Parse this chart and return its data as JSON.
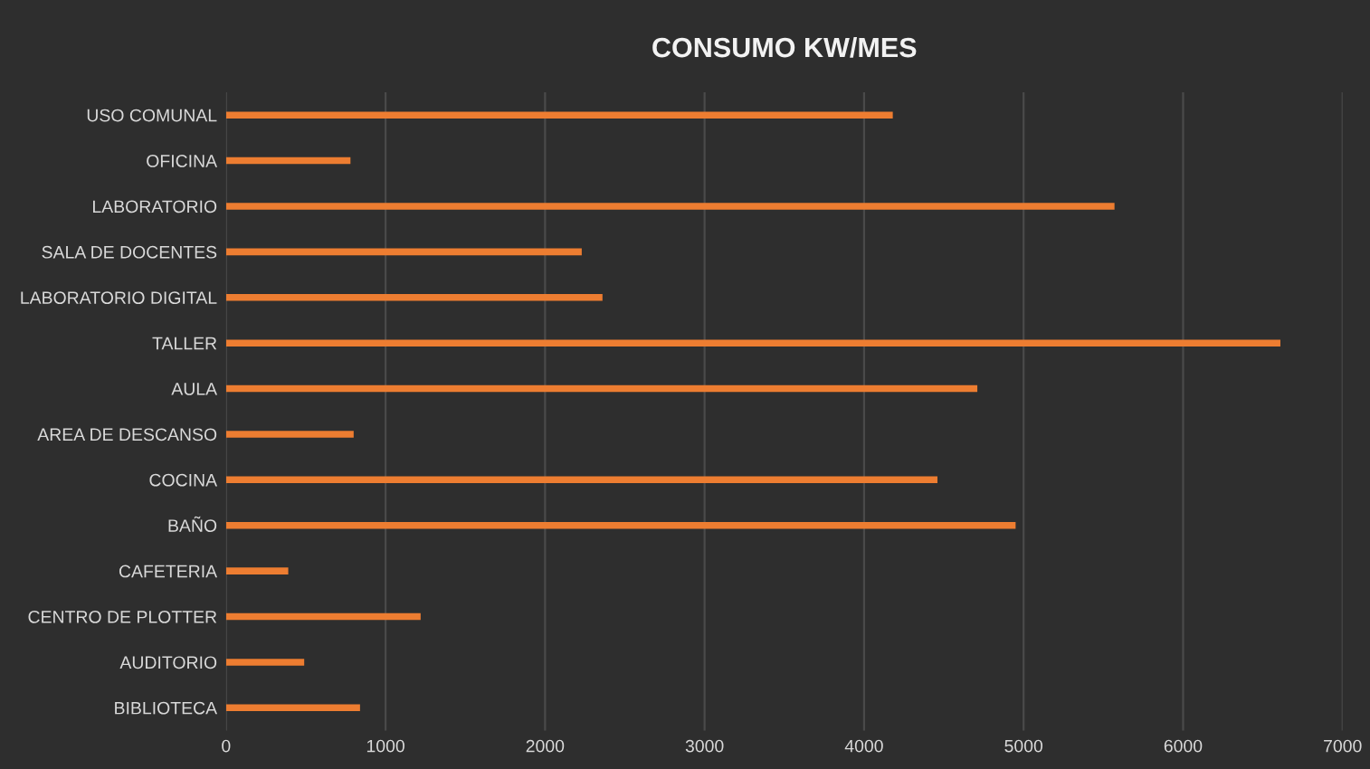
{
  "chart_data": {
    "type": "bar",
    "orientation": "horizontal",
    "title": "CONSUMO KW/MES",
    "categories": [
      "USO COMUNAL",
      "OFICINA",
      "LABORATORIO",
      "SALA DE DOCENTES",
      "LABORATORIO DIGITAL",
      "TALLER",
      "AULA",
      "AREA DE DESCANSO",
      "COCINA",
      "BAÑO",
      "CAFETERIA",
      "CENTRO DE PLOTTER",
      "AUDITORIO",
      "BIBLIOTECA"
    ],
    "values": [
      4180,
      780,
      5570,
      2230,
      2360,
      6610,
      4710,
      800,
      4460,
      4950,
      390,
      1220,
      490,
      840
    ],
    "color": "#ed7d31",
    "xlim": [
      0,
      7000
    ],
    "xticks": [
      0,
      1000,
      2000,
      3000,
      4000,
      5000,
      6000,
      7000
    ],
    "grid": "x"
  }
}
